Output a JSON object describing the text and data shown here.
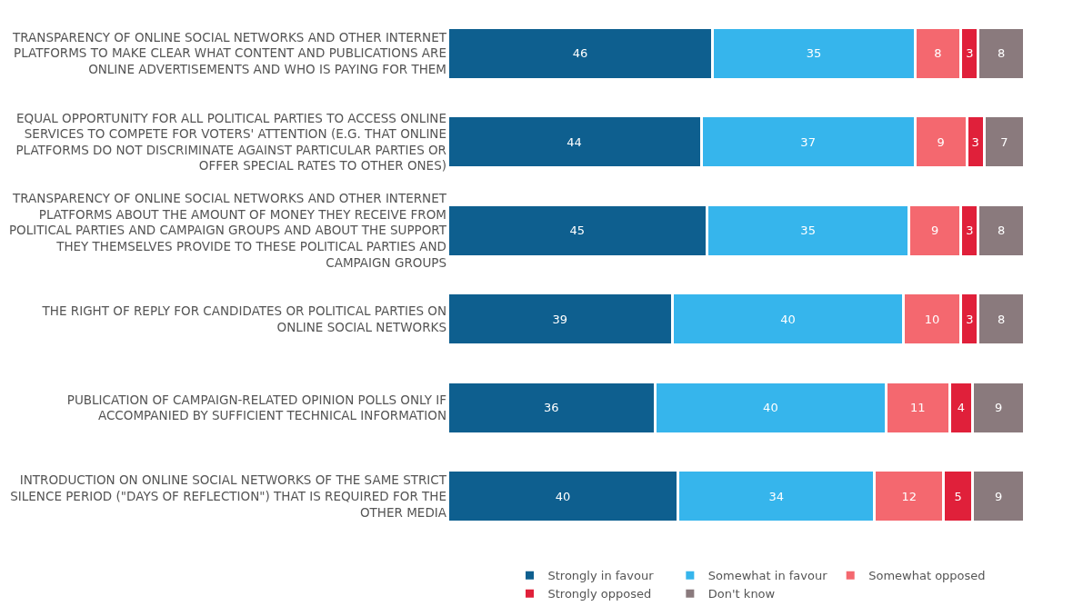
{
  "chart_data": {
    "type": "bar",
    "orientation": "horizontal",
    "stacked": true,
    "data_labels": true,
    "legend": "bottom",
    "categories": [
      "TRANSPARENCY OF ONLINE SOCIAL NETWORKS AND OTHER INTERNET PLATFORMS TO MAKE CLEAR WHAT CONTENT AND PUBLICATIONS ARE ONLINE ADVERTISEMENTS AND WHO IS PAYING FOR THEM",
      "EQUAL OPPORTUNITY FOR ALL POLITICAL PARTIES TO ACCESS ONLINE SERVICES TO COMPETE FOR VOTERS' ATTENTION (E.G. THAT ONLINE PLATFORMS DO NOT DISCRIMINATE AGAINST PARTICULAR PARTIES OR OFFER SPECIAL RATES TO OTHER ONES)",
      "TRANSPARENCY OF ONLINE SOCIAL NETWORKS AND OTHER INTERNET PLATFORMS ABOUT THE AMOUNT OF MONEY THEY RECEIVE FROM POLITICAL PARTIES AND CAMPAIGN GROUPS AND ABOUT THE SUPPORT THEY THEMSELVES PROVIDE TO THESE POLITICAL PARTIES AND CAMPAIGN GROUPS",
      "THE RIGHT OF REPLY FOR CANDIDATES OR POLITICAL PARTIES ON ONLINE SOCIAL NETWORKS",
      "PUBLICATION OF CAMPAIGN-RELATED OPINION POLLS ONLY IF ACCOMPANIED BY SUFFICIENT TECHNICAL INFORMATION",
      "INTRODUCTION ON ONLINE SOCIAL NETWORKS OF THE SAME STRICT SILENCE PERIOD (\"DAYS OF REFLECTION\") THAT IS REQUIRED FOR THE OTHER MEDIA"
    ],
    "series": [
      {
        "name": "Strongly in favour",
        "color": "#0e5f8f",
        "values": [
          46,
          44,
          45,
          39,
          36,
          40
        ]
      },
      {
        "name": "Somewhat in favour",
        "color": "#36b5ec",
        "values": [
          35,
          37,
          35,
          40,
          40,
          34
        ]
      },
      {
        "name": "Somewhat opposed",
        "color": "#f4686f",
        "values": [
          8,
          9,
          9,
          10,
          11,
          12
        ]
      },
      {
        "name": "Strongly opposed",
        "color": "#e0203a",
        "values": [
          3,
          3,
          3,
          3,
          4,
          5
        ]
      },
      {
        "name": "Don't know",
        "color": "#8a7a7d",
        "values": [
          8,
          7,
          8,
          8,
          9,
          9
        ]
      }
    ]
  }
}
